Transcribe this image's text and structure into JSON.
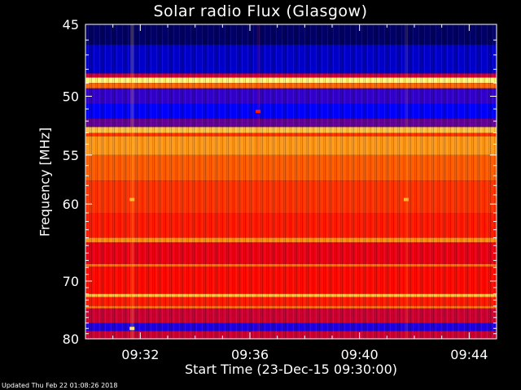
{
  "chart_data": {
    "type": "heatmap",
    "title": "Solar radio Flux (Glasgow)",
    "xlabel": "Start Time (23-Dec-15 09:30:00)",
    "ylabel": "Frequency [MHz]",
    "x_tick_labels": [
      "09:32",
      "09:36",
      "09:40",
      "09:44"
    ],
    "x_tick_minutes": [
      2,
      6,
      10,
      14
    ],
    "xlim_minutes": [
      0,
      15
    ],
    "y_tick_labels": [
      "45",
      "50",
      "55",
      "60",
      "70",
      "80"
    ],
    "y_tick_values": [
      45,
      50,
      55,
      60,
      70,
      80
    ],
    "ylim_mhz": [
      45,
      80
    ],
    "y_axis_inverted": true,
    "colormap": [
      "#000040",
      "#0000ff",
      "#ff0000",
      "#ff8000",
      "#ffff80"
    ],
    "frequency_bands": [
      {
        "from_mhz": 45.0,
        "to_mhz": 46.3,
        "level": 0.05
      },
      {
        "from_mhz": 46.3,
        "to_mhz": 48.3,
        "level": 0.18
      },
      {
        "from_mhz": 48.3,
        "to_mhz": 48.6,
        "level": 0.45
      },
      {
        "from_mhz": 48.6,
        "to_mhz": 49.0,
        "level": 0.98
      },
      {
        "from_mhz": 49.0,
        "to_mhz": 49.4,
        "level": 0.7
      },
      {
        "from_mhz": 49.4,
        "to_mhz": 50.6,
        "level": 0.3
      },
      {
        "from_mhz": 50.6,
        "to_mhz": 51.8,
        "level": 0.25
      },
      {
        "from_mhz": 51.8,
        "to_mhz": 52.5,
        "level": 0.35
      },
      {
        "from_mhz": 52.5,
        "to_mhz": 53.0,
        "level": 0.88
      },
      {
        "from_mhz": 53.0,
        "to_mhz": 53.3,
        "level": 0.6
      },
      {
        "from_mhz": 53.3,
        "to_mhz": 55.0,
        "level": 0.8
      },
      {
        "from_mhz": 55.0,
        "to_mhz": 57.5,
        "level": 0.68
      },
      {
        "from_mhz": 57.5,
        "to_mhz": 61.0,
        "level": 0.6
      },
      {
        "from_mhz": 61.0,
        "to_mhz": 64.0,
        "level": 0.55
      },
      {
        "from_mhz": 64.0,
        "to_mhz": 64.6,
        "level": 0.78
      },
      {
        "from_mhz": 64.6,
        "to_mhz": 67.5,
        "level": 0.48
      },
      {
        "from_mhz": 67.5,
        "to_mhz": 67.9,
        "level": 0.72
      },
      {
        "from_mhz": 67.9,
        "to_mhz": 72.0,
        "level": 0.52
      },
      {
        "from_mhz": 72.0,
        "to_mhz": 72.5,
        "level": 0.88
      },
      {
        "from_mhz": 72.5,
        "to_mhz": 74.0,
        "level": 0.55
      },
      {
        "from_mhz": 74.0,
        "to_mhz": 74.4,
        "level": 0.74
      },
      {
        "from_mhz": 74.4,
        "to_mhz": 77.0,
        "level": 0.45
      },
      {
        "from_mhz": 77.0,
        "to_mhz": 78.5,
        "level": 0.28
      },
      {
        "from_mhz": 78.5,
        "to_mhz": 80.0,
        "level": 0.45
      }
    ],
    "events": [
      {
        "minute": 1.7,
        "mhz": 59.5,
        "level": 0.85
      },
      {
        "minute": 6.3,
        "mhz": 51.2,
        "level": 0.55
      },
      {
        "minute": 11.7,
        "mhz": 59.5,
        "level": 0.85
      },
      {
        "minute": 1.7,
        "mhz": 78.0,
        "level": 0.95
      }
    ],
    "grid": false
  },
  "footer": {
    "updated_text": "Updated Thu Feb 22 01:08:26 2018"
  }
}
